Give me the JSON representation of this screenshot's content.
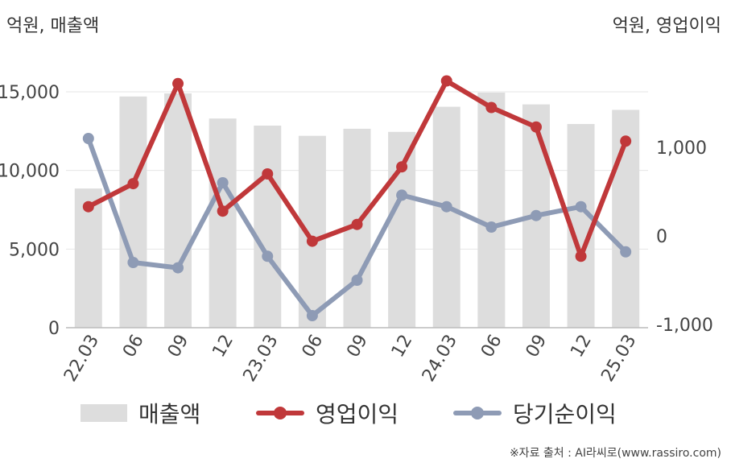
{
  "units": {
    "left": "억원, 매출액",
    "right": "억원, 영업이익"
  },
  "source": "※자료 출처 : AI라씨로(www.rassiro.com)",
  "colors": {
    "bar": "#dddddd",
    "operating": "#c0383a",
    "net": "#8e9bb5",
    "grid": "#e6e6e6",
    "axis": "#bbbbbb"
  },
  "chart_data": {
    "type": "bar+line",
    "categories": [
      "22.03",
      "06",
      "09",
      "12",
      "23.03",
      "06",
      "09",
      "12",
      "24.03",
      "06",
      "09",
      "12",
      "25.03"
    ],
    "left_axis": {
      "ylim": [
        0,
        15000
      ],
      "ticks": [
        0,
        5000,
        10000,
        15000
      ],
      "tick_labels": [
        "0",
        "5,000",
        "10,000",
        "15,000"
      ]
    },
    "right_axis": {
      "ylim": [
        -1000,
        1000
      ],
      "ticks": [
        -1000,
        0,
        1000
      ],
      "tick_labels": [
        "-1,000",
        "0",
        "1,000"
      ]
    },
    "grid": true,
    "legend_position": "bottom",
    "series": [
      {
        "name": "매출액",
        "type": "bar",
        "axis": "left",
        "values": [
          8850,
          14700,
          14900,
          13300,
          12850,
          12200,
          12650,
          12450,
          14050,
          14950,
          14200,
          12950,
          13850
        ]
      },
      {
        "name": "영업이익",
        "type": "line",
        "axis": "right",
        "values": [
          330,
          590,
          1720,
          280,
          700,
          -60,
          130,
          780,
          1750,
          1450,
          1230,
          -230,
          1070
        ]
      },
      {
        "name": "당기순이익",
        "type": "line",
        "axis": "right",
        "values": [
          1100,
          -300,
          -360,
          600,
          -230,
          -900,
          -500,
          460,
          330,
          100,
          230,
          330,
          -180
        ]
      }
    ]
  }
}
